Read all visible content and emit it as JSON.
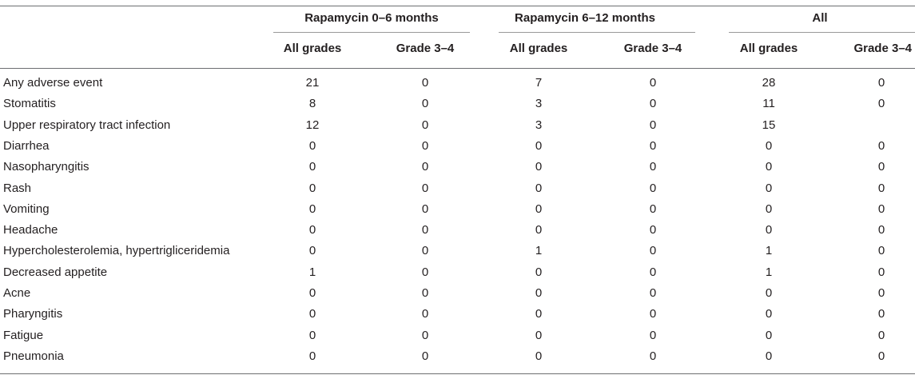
{
  "table": {
    "groups": [
      {
        "label": "Rapamycin 0–6 months"
      },
      {
        "label": "Rapamycin 6–12 months"
      },
      {
        "label": "All"
      }
    ],
    "subheaders": [
      "All grades",
      "Grade 3–4",
      "All grades",
      "Grade 3–4",
      "All grades",
      "Grade 3–4"
    ],
    "rows": [
      {
        "label": "Any adverse event",
        "values": [
          "21",
          "0",
          "7",
          "0",
          "28",
          "0"
        ]
      },
      {
        "label": "Stomatitis",
        "values": [
          "8",
          "0",
          "3",
          "0",
          "11",
          "0"
        ]
      },
      {
        "label": "Upper respiratory tract infection",
        "values": [
          "12",
          "0",
          "3",
          "0",
          "15",
          ""
        ]
      },
      {
        "label": "Diarrhea",
        "values": [
          "0",
          "0",
          "0",
          "0",
          "0",
          "0"
        ]
      },
      {
        "label": "Nasopharyngitis",
        "values": [
          "0",
          "0",
          "0",
          "0",
          "0",
          "0"
        ]
      },
      {
        "label": "Rash",
        "values": [
          "0",
          "0",
          "0",
          "0",
          "0",
          "0"
        ]
      },
      {
        "label": "Vomiting",
        "values": [
          "0",
          "0",
          "0",
          "0",
          "0",
          "0"
        ]
      },
      {
        "label": "Headache",
        "values": [
          "0",
          "0",
          "0",
          "0",
          "0",
          "0"
        ]
      },
      {
        "label": "Hypercholesterolemia, hypertrigliceridemia",
        "values": [
          "0",
          "0",
          "1",
          "0",
          "1",
          "0"
        ]
      },
      {
        "label": "Decreased appetite",
        "values": [
          "1",
          "0",
          "0",
          "0",
          "1",
          "0"
        ]
      },
      {
        "label": "Acne",
        "values": [
          "0",
          "0",
          "0",
          "0",
          "0",
          "0"
        ]
      },
      {
        "label": "Pharyngitis",
        "values": [
          "0",
          "0",
          "0",
          "0",
          "0",
          "0"
        ]
      },
      {
        "label": "Fatigue",
        "values": [
          "0",
          "0",
          "0",
          "0",
          "0",
          "0"
        ]
      },
      {
        "label": "Pneumonia",
        "values": [
          "0",
          "0",
          "0",
          "0",
          "0",
          "0"
        ]
      }
    ]
  }
}
